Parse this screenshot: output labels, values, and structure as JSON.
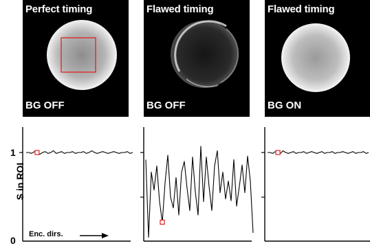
{
  "panels": [
    {
      "title": "Perfect timing",
      "bg": "BG OFF"
    },
    {
      "title": "Flawed timing",
      "bg": "BG OFF"
    },
    {
      "title": "Flawed timing",
      "bg": "BG ON"
    }
  ],
  "axis": {
    "ylabel": "S in ROI",
    "ytick_one": "1",
    "ytick_zero": "0",
    "xlabel": "Enc. dirs."
  },
  "colors": {
    "marker": "#e02020",
    "roi": "#e02020",
    "trace": "#000000"
  },
  "chart_data": [
    {
      "type": "line",
      "title": "",
      "ylabel": "S in ROI",
      "xlabel": "Enc. dirs.",
      "ylim": [
        0,
        1.5
      ],
      "x": [
        1,
        2,
        3,
        4,
        5,
        6,
        7,
        8,
        9,
        10,
        11,
        12,
        13,
        14,
        15,
        16,
        17,
        18,
        19,
        20,
        21,
        22,
        23,
        24,
        25,
        26,
        27,
        28,
        29,
        30,
        31,
        32,
        33,
        34,
        35,
        36,
        37,
        38,
        39,
        40
      ],
      "values": [
        1.0,
        1.0,
        0.99,
        1.01,
        1.0,
        0.98,
        1.0,
        1.01,
        0.99,
        1.0,
        1.02,
        0.99,
        1.0,
        1.01,
        0.99,
        1.0,
        1.0,
        1.01,
        0.99,
        1.0,
        1.0,
        1.01,
        0.99,
        1.0,
        1.02,
        1.0,
        0.99,
        1.0,
        1.01,
        1.0,
        0.99,
        1.0,
        1.01,
        1.0,
        0.99,
        1.0,
        1.0,
        1.01,
        0.99,
        1.0
      ],
      "marker_index": 4
    },
    {
      "type": "line",
      "title": "",
      "ylabel": "S in ROI",
      "xlabel": "Enc. dirs.",
      "ylim": [
        0,
        1.5
      ],
      "x": [
        1,
        2,
        3,
        4,
        5,
        6,
        7,
        8,
        9,
        10,
        11,
        12,
        13,
        14,
        15,
        16,
        17,
        18,
        19,
        20,
        21,
        22,
        23,
        24,
        25,
        26,
        27,
        28,
        29,
        30,
        31,
        32,
        33,
        34,
        35,
        36,
        37,
        38,
        39,
        40
      ],
      "values": [
        0.92,
        0.05,
        0.78,
        0.58,
        0.85,
        0.45,
        0.22,
        0.66,
        0.97,
        0.5,
        0.38,
        0.72,
        0.3,
        0.78,
        0.9,
        0.6,
        0.35,
        0.95,
        0.56,
        0.3,
        1.07,
        0.45,
        0.95,
        0.62,
        0.35,
        0.85,
        1.02,
        0.55,
        0.78,
        0.48,
        0.68,
        0.46,
        0.92,
        0.4,
        0.62,
        0.86,
        0.55,
        0.96,
        0.68,
        0.1
      ],
      "marker_index": 6
    },
    {
      "type": "line",
      "title": "",
      "ylabel": "S in ROI",
      "xlabel": "Enc. dirs.",
      "ylim": [
        0,
        1.5
      ],
      "x": [
        1,
        2,
        3,
        4,
        5,
        6,
        7,
        8,
        9,
        10,
        11,
        12,
        13,
        14,
        15,
        16,
        17,
        18,
        19,
        20,
        21,
        22,
        23,
        24,
        25,
        26,
        27,
        28,
        29,
        30,
        31,
        32,
        33,
        34,
        35,
        36,
        37,
        38,
        39,
        40
      ],
      "values": [
        1.0,
        1.0,
        0.99,
        1.01,
        1.0,
        0.99,
        1.02,
        1.0,
        0.99,
        1.0,
        1.01,
        0.99,
        1.0,
        1.0,
        1.01,
        0.99,
        1.0,
        1.01,
        1.0,
        0.99,
        1.0,
        1.01,
        0.99,
        1.0,
        1.0,
        1.01,
        0.99,
        1.0,
        1.0,
        1.01,
        1.0,
        0.99,
        1.0,
        1.01,
        0.99,
        1.0,
        1.0,
        1.01,
        0.99,
        1.0
      ],
      "marker_index": 4
    }
  ]
}
